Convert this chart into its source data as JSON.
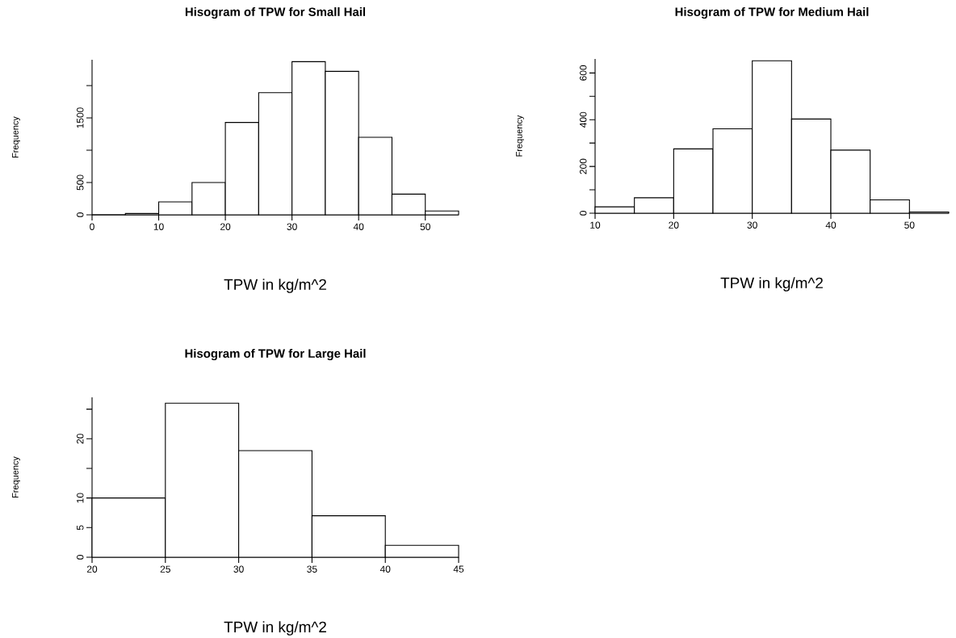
{
  "chart_data": [
    {
      "type": "histogram",
      "title": "Hisogram of TPW for Small Hail",
      "xlabel": "TPW in kg/m^2",
      "ylabel": "Frequency",
      "color": "#ffffff",
      "bins": [
        0,
        5,
        10,
        15,
        20,
        25,
        30,
        35,
        40,
        45,
        50,
        55
      ],
      "values": [
        0,
        20,
        200,
        500,
        1430,
        1890,
        2370,
        2220,
        1200,
        320,
        60
      ],
      "xlim": [
        0,
        55
      ],
      "xticks": [
        0,
        10,
        20,
        30,
        40,
        50
      ],
      "ylim": [
        0,
        2400
      ],
      "yticks": [
        0,
        500,
        {
          "value": 1000,
          "label": null
        },
        1500,
        {
          "value": 2000,
          "label": null
        }
      ]
    },
    {
      "type": "histogram",
      "title": "Hisogram of TPW for Medium Hail",
      "xlabel": "TPW in kg/m^2",
      "ylabel": "Frequency",
      "color": "#ffffff",
      "bins": [
        10,
        15,
        20,
        25,
        30,
        35,
        40,
        45,
        50,
        55
      ],
      "values": [
        27,
        66,
        275,
        361,
        652,
        403,
        270,
        57,
        5
      ],
      "xlim": [
        10,
        55
      ],
      "xticks": [
        10,
        20,
        30,
        40,
        50
      ],
      "ylim": [
        0,
        660
      ],
      "yticks": [
        0,
        {
          "value": 100,
          "label": null
        },
        200,
        {
          "value": 300,
          "label": null
        },
        400,
        {
          "value": 500,
          "label": null
        },
        600
      ]
    },
    {
      "type": "histogram",
      "title": "Hisogram of TPW for Large Hail",
      "xlabel": "TPW in kg/m^2",
      "ylabel": "Frequency",
      "color": "#ffffff",
      "bins": [
        20,
        25,
        30,
        35,
        40,
        45
      ],
      "values": [
        10,
        26,
        18,
        7,
        2
      ],
      "xlim": [
        20,
        45
      ],
      "xticks": [
        20,
        25,
        30,
        35,
        40,
        45
      ],
      "ylim": [
        0,
        27
      ],
      "yticks": [
        0,
        5,
        10,
        {
          "value": 15,
          "label": null
        },
        20,
        {
          "value": 25,
          "label": null
        }
      ]
    }
  ]
}
